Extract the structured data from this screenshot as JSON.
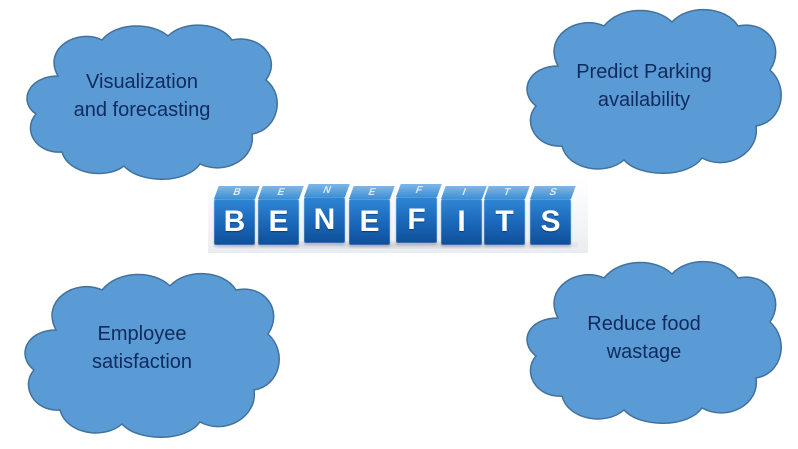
{
  "colors": {
    "cloud_fill": "#5b9bd5",
    "cloud_stroke": "#41719c",
    "cloud_text": "#0f2a5c",
    "cube_blue": "#1a66b8",
    "cube_letter": "#ffffff"
  },
  "title_cubes": {
    "letters": [
      "B",
      "E",
      "N",
      "E",
      "F",
      "I",
      "T",
      "S"
    ]
  },
  "clouds": {
    "top_left": {
      "lines": [
        "Visualization",
        "and forecasting"
      ]
    },
    "top_right": {
      "lines": [
        "Predict Parking",
        "availability"
      ]
    },
    "bottom_left": {
      "lines": [
        "Employee",
        "satisfaction"
      ]
    },
    "bottom_right": {
      "lines": [
        "Reduce food",
        "wastage"
      ]
    }
  }
}
